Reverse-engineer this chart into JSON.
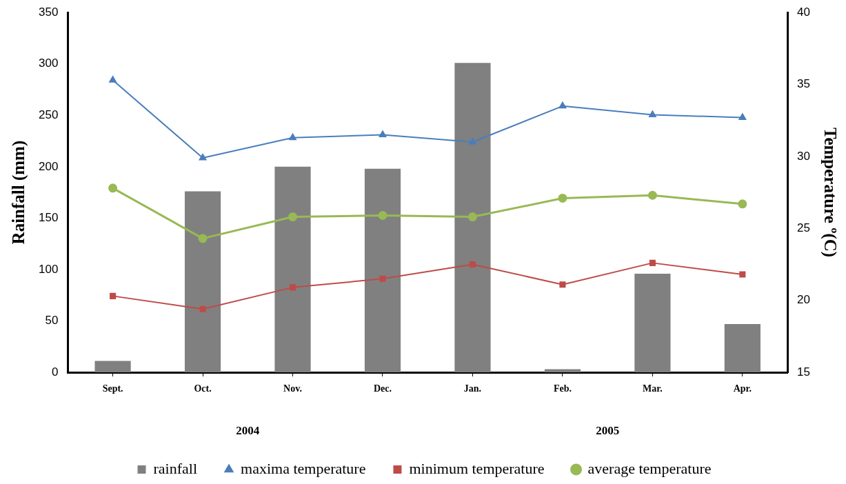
{
  "chart_data": {
    "type": "bar",
    "ylabel": "Rainfall (mm)",
    "y2label": "Temperature º(C)",
    "categories": [
      "Sept.",
      "Oct.",
      "Nov.",
      "Dec.",
      "Jan.",
      "Feb.",
      "Mar.",
      "Apr."
    ],
    "series": [
      {
        "name": "rainfall",
        "color": "#808080",
        "values": [
          11,
          176,
          200,
          198,
          301,
          3,
          96,
          47
        ]
      },
      {
        "name": "maxima temperature",
        "type": "line",
        "axis": "y2",
        "marker": "triangle",
        "color": "#4a7ebb",
        "values": [
          35.3,
          29.9,
          31.3,
          31.5,
          31.0,
          33.5,
          32.9,
          32.7
        ]
      },
      {
        "name": "minimum temperature",
        "type": "line",
        "axis": "y2",
        "marker": "square",
        "color": "#be4b48",
        "values": [
          20.3,
          19.4,
          20.9,
          21.5,
          22.5,
          21.1,
          22.6,
          21.8
        ]
      },
      {
        "name": "average temperature",
        "type": "line",
        "axis": "y2",
        "marker": "circle",
        "color": "#98b954",
        "values": [
          27.8,
          24.3,
          25.8,
          25.9,
          25.8,
          27.1,
          27.3,
          26.7
        ]
      }
    ],
    "ylim": [
      0,
      350
    ],
    "yticks": [
      0,
      50,
      100,
      150,
      200,
      250,
      300,
      350
    ],
    "y2lim": [
      15,
      40
    ],
    "y2ticks": [
      15,
      20,
      25,
      30,
      35,
      40
    ],
    "legend": "bottom",
    "annotations": [
      "2004",
      "2005"
    ]
  }
}
